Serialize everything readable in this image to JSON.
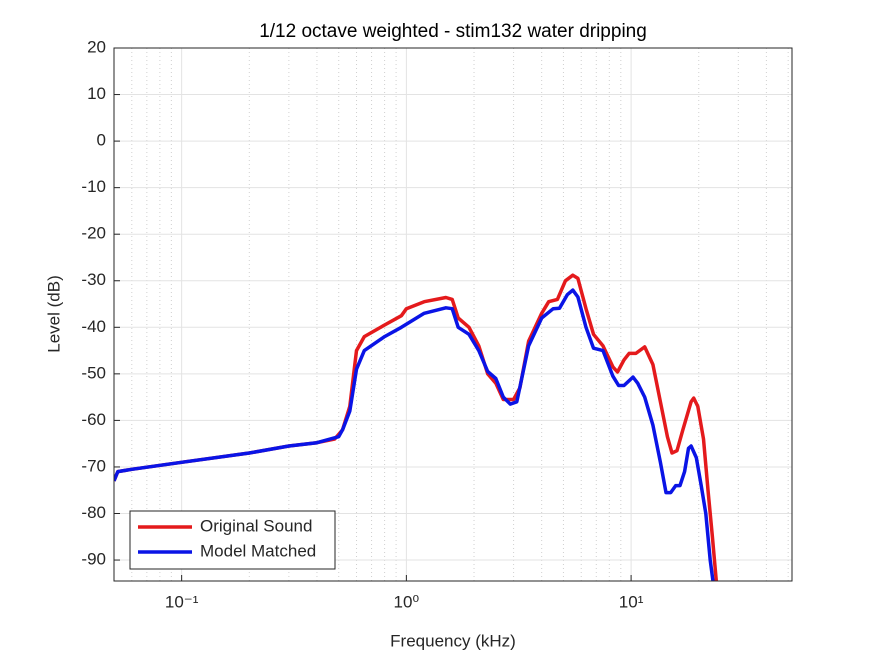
{
  "chart_data": {
    "type": "line",
    "title": "1/12 octave weighted - stim132 water dripping",
    "xlabel": "Frequency (kHz)",
    "ylabel": "Level (dB)",
    "xscale": "log",
    "grid": true,
    "legend": "lower left",
    "xlim": [
      0.05,
      52
    ],
    "ylim": [
      -94.5,
      20
    ],
    "xticks": [
      {
        "value": 0.1,
        "label": "10⁻¹"
      },
      {
        "value": 1,
        "label": "10⁰"
      },
      {
        "value": 10,
        "label": "10¹"
      }
    ],
    "xminorticks": [
      0.05,
      0.06,
      0.07,
      0.08,
      0.09,
      0.2,
      0.3,
      0.4,
      0.5,
      0.6,
      0.7,
      0.8,
      0.9,
      2,
      3,
      4,
      5,
      6,
      7,
      8,
      9,
      20,
      30,
      40,
      50
    ],
    "yticks": [
      20,
      10,
      0,
      -10,
      -20,
      -30,
      -40,
      -50,
      -60,
      -70,
      -80,
      -90
    ],
    "series": [
      {
        "name": "Original Sound",
        "color": "#e41a1c",
        "x": [
          0.05,
          0.052,
          0.06,
          0.1,
          0.2,
          0.3,
          0.4,
          0.48,
          0.52,
          0.56,
          0.6,
          0.65,
          0.8,
          0.95,
          1.0,
          1.2,
          1.5,
          1.6,
          1.7,
          1.9,
          2.1,
          2.3,
          2.5,
          2.7,
          3.0,
          3.2,
          3.5,
          4.0,
          4.3,
          4.7,
          5.1,
          5.5,
          5.8,
          6.3,
          6.8,
          7.5,
          8.3,
          8.7,
          9.3,
          9.8,
          10.5,
          11.5,
          12.5,
          13.5,
          14.5,
          15.2,
          16,
          17,
          18.5,
          19,
          19.8,
          21,
          22,
          23,
          24
        ],
        "values": [
          -73,
          -71,
          -70.5,
          -69,
          -67,
          -65.5,
          -64.8,
          -64,
          -62,
          -57,
          -45,
          -42,
          -39.5,
          -37.5,
          -36,
          -34.5,
          -33.6,
          -34,
          -38,
          -40,
          -44,
          -50,
          -52,
          -55.5,
          -55.5,
          -53,
          -43,
          -37,
          -34.5,
          -34,
          -30,
          -28.8,
          -29.5,
          -36,
          -41.5,
          -44,
          -48.5,
          -49.6,
          -47,
          -45.6,
          -45.6,
          -44.2,
          -48,
          -56,
          -63.5,
          -67,
          -66.5,
          -62,
          -56,
          -55.2,
          -57,
          -64,
          -75,
          -85,
          -95
        ]
      },
      {
        "name": "Model Matched",
        "color": "#0a14e6",
        "x": [
          0.05,
          0.052,
          0.06,
          0.1,
          0.2,
          0.3,
          0.4,
          0.5,
          0.52,
          0.56,
          0.6,
          0.65,
          0.8,
          0.95,
          1.2,
          1.5,
          1.6,
          1.7,
          1.9,
          2.1,
          2.3,
          2.5,
          2.7,
          2.9,
          3.1,
          3.5,
          4.0,
          4.5,
          4.8,
          5.2,
          5.5,
          5.8,
          6.3,
          6.8,
          7.5,
          8.3,
          8.8,
          9.3,
          10.2,
          10.7,
          11.5,
          12.5,
          13.5,
          14.3,
          15,
          15.8,
          16.5,
          17.3,
          18,
          18.5,
          19.5,
          20.5,
          21.5,
          22.5,
          23.5
        ],
        "values": [
          -73,
          -71,
          -70.5,
          -69,
          -67,
          -65.5,
          -64.8,
          -63.5,
          -62,
          -58,
          -49,
          -45,
          -42,
          -40,
          -37,
          -35.8,
          -36,
          -40,
          -41.5,
          -45,
          -49.5,
          -51,
          -55,
          -56.5,
          -56,
          -44,
          -38,
          -36,
          -35.9,
          -33,
          -32,
          -33.5,
          -40,
          -44.5,
          -45,
          -50.5,
          -52.5,
          -52.5,
          -50.7,
          -52,
          -55,
          -61,
          -69,
          -75.5,
          -75.5,
          -74,
          -74,
          -71,
          -66,
          -65.5,
          -68,
          -74,
          -80,
          -90,
          -97
        ]
      }
    ]
  }
}
